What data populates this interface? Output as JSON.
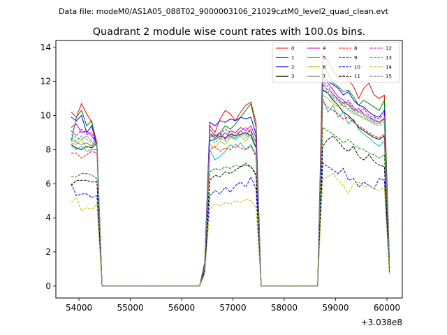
{
  "header": {
    "file_line": "Data file: modeM0/AS1A05_088T02_9000003106_21029cztM0_level2_quad_clean.evt",
    "title": "Quadrant 2 module wise count rates with 100.0s bins."
  },
  "chart_data": {
    "type": "line",
    "title": "Quadrant 2 module wise count rates with 100.0s bins.",
    "xlabel": "",
    "ylabel": "",
    "x_offset_label": "+3.038e8",
    "xlim": [
      53550,
      60300
    ],
    "ylim": [
      -0.7,
      14.4
    ],
    "x_ticks": [
      54000,
      55000,
      56000,
      57000,
      58000,
      59000,
      60000
    ],
    "x_tick_labels": [
      "54000",
      "55000",
      "56000",
      "57000",
      "58000",
      "59000",
      "60000"
    ],
    "y_ticks": [
      0,
      2,
      4,
      6,
      8,
      10,
      12,
      14
    ],
    "y_tick_labels": [
      "0",
      "2",
      "4",
      "6",
      "8",
      "10",
      "12",
      "14"
    ],
    "grid": false,
    "legend_position": "top-right",
    "x": [
      53850,
      53950,
      54050,
      54150,
      54250,
      54350,
      54450,
      54550,
      54650,
      54750,
      54850,
      54950,
      55050,
      55150,
      55250,
      55350,
      55450,
      55550,
      55650,
      55750,
      55850,
      55950,
      56050,
      56150,
      56250,
      56350,
      56450,
      56550,
      56650,
      56750,
      56850,
      56950,
      57050,
      57150,
      57250,
      57350,
      57450,
      57550,
      57650,
      57750,
      57850,
      57950,
      58050,
      58150,
      58250,
      58350,
      58450,
      58550,
      58650,
      58750,
      58850,
      58950,
      59050,
      59150,
      59250,
      59350,
      59450,
      59550,
      59650,
      59750,
      59850,
      59950,
      60050
    ],
    "series": [
      {
        "name": "0",
        "color": "#ff0000",
        "dashed": false,
        "values": [
          10.2,
          9.9,
          10.7,
          10.1,
          9.6,
          8.4,
          0.0,
          0.0,
          0.0,
          0.0,
          0.0,
          0.0,
          0.0,
          0.0,
          0.0,
          0.0,
          0.0,
          0.0,
          0.0,
          0.0,
          0.0,
          0.0,
          0.0,
          0.0,
          0.0,
          0.0,
          1.4,
          9.4,
          9.0,
          9.8,
          10.3,
          10.1,
          9.7,
          10.2,
          10.6,
          10.8,
          9.6,
          0.0,
          0.0,
          0.0,
          0.0,
          0.0,
          0.0,
          0.0,
          0.0,
          0.0,
          0.0,
          0.0,
          0.0,
          13.6,
          13.2,
          12.6,
          12.2,
          12.4,
          12.1,
          11.7,
          11.0,
          11.6,
          11.9,
          11.2,
          11.0,
          11.2,
          1.5
        ]
      },
      {
        "name": "1",
        "color": "#008000",
        "dashed": false,
        "values": [
          8.5,
          9.9,
          10.3,
          9.4,
          9.7,
          8.1,
          0.0,
          0.0,
          0.0,
          0.0,
          0.0,
          0.0,
          0.0,
          0.0,
          0.0,
          0.0,
          0.0,
          0.0,
          0.0,
          0.0,
          0.0,
          0.0,
          0.0,
          0.0,
          0.0,
          0.0,
          1.3,
          8.9,
          8.7,
          9.0,
          9.4,
          9.2,
          9.5,
          9.9,
          10.3,
          10.7,
          9.3,
          0.0,
          0.0,
          0.0,
          0.0,
          0.0,
          0.0,
          0.0,
          0.0,
          0.0,
          0.0,
          0.0,
          0.0,
          12.9,
          12.5,
          11.9,
          11.7,
          11.4,
          11.5,
          11.1,
          10.6,
          10.9,
          10.7,
          10.5,
          10.3,
          10.9,
          1.3
        ]
      },
      {
        "name": "2",
        "color": "#0000ff",
        "dashed": false,
        "values": [
          9.9,
          9.7,
          10.0,
          9.0,
          9.4,
          8.2,
          0.0,
          0.0,
          0.0,
          0.0,
          0.0,
          0.0,
          0.0,
          0.0,
          0.0,
          0.0,
          0.0,
          0.0,
          0.0,
          0.0,
          0.0,
          0.0,
          0.0,
          0.0,
          0.0,
          0.0,
          1.3,
          9.6,
          9.4,
          9.7,
          9.6,
          9.8,
          9.7,
          9.9,
          9.8,
          9.9,
          8.9,
          0.0,
          0.0,
          0.0,
          0.0,
          0.0,
          0.0,
          0.0,
          0.0,
          0.0,
          0.0,
          0.0,
          0.0,
          12.4,
          12.0,
          11.8,
          11.6,
          11.2,
          11.4,
          10.9,
          10.6,
          10.5,
          10.2,
          10.0,
          9.9,
          10.3,
          1.2
        ]
      },
      {
        "name": "3",
        "color": "#000000",
        "dashed": false,
        "values": [
          8.3,
          8.1,
          8.0,
          8.2,
          8.1,
          8.4,
          0.0,
          0.0,
          0.0,
          0.0,
          0.0,
          0.0,
          0.0,
          0.0,
          0.0,
          0.0,
          0.0,
          0.0,
          0.0,
          0.0,
          0.0,
          0.0,
          0.0,
          0.0,
          0.0,
          0.0,
          1.1,
          8.5,
          8.6,
          8.8,
          8.7,
          8.9,
          8.8,
          8.9,
          9.0,
          8.8,
          8.1,
          0.0,
          0.0,
          0.0,
          0.0,
          0.0,
          0.0,
          0.0,
          0.0,
          0.0,
          0.0,
          0.0,
          0.0,
          11.5,
          11.3,
          10.9,
          10.6,
          10.2,
          10.0,
          9.7,
          9.3,
          9.1,
          8.9,
          8.7,
          8.6,
          8.8,
          1.0
        ]
      },
      {
        "name": "4",
        "color": "#bf00bf",
        "dashed": false,
        "values": [
          9.3,
          9.5,
          9.0,
          9.1,
          8.8,
          8.3,
          0.0,
          0.0,
          0.0,
          0.0,
          0.0,
          0.0,
          0.0,
          0.0,
          0.0,
          0.0,
          0.0,
          0.0,
          0.0,
          0.0,
          0.0,
          0.0,
          0.0,
          0.0,
          0.0,
          0.0,
          1.2,
          9.2,
          8.8,
          9.0,
          8.6,
          9.1,
          9.0,
          9.3,
          9.1,
          9.4,
          8.7,
          0.0,
          0.0,
          0.0,
          0.0,
          0.0,
          0.0,
          0.0,
          0.0,
          0.0,
          0.0,
          0.0,
          0.0,
          12.2,
          11.9,
          11.5,
          11.1,
          10.9,
          10.6,
          10.3,
          10.4,
          10.1,
          9.9,
          9.7,
          9.6,
          9.8,
          1.1
        ]
      },
      {
        "name": "5",
        "color": "#00bfbf",
        "dashed": false,
        "values": [
          8.2,
          8.0,
          8.2,
          7.9,
          8.0,
          8.0,
          0.0,
          0.0,
          0.0,
          0.0,
          0.0,
          0.0,
          0.0,
          0.0,
          0.0,
          0.0,
          0.0,
          0.0,
          0.0,
          0.0,
          0.0,
          0.0,
          0.0,
          0.0,
          0.0,
          0.0,
          1.1,
          8.0,
          7.4,
          7.6,
          7.9,
          8.3,
          8.1,
          8.4,
          8.0,
          8.3,
          7.7,
          0.0,
          0.0,
          0.0,
          0.0,
          0.0,
          0.0,
          0.0,
          0.0,
          0.0,
          0.0,
          0.0,
          0.0,
          11.0,
          10.2,
          10.6,
          9.9,
          10.2,
          9.5,
          9.8,
          9.2,
          8.9,
          8.7,
          8.4,
          8.2,
          8.5,
          1.0
        ]
      },
      {
        "name": "6",
        "color": "#bfbf00",
        "dashed": false,
        "values": [
          8.4,
          8.3,
          8.6,
          8.1,
          8.3,
          8.2,
          0.0,
          0.0,
          0.0,
          0.0,
          0.0,
          0.0,
          0.0,
          0.0,
          0.0,
          0.0,
          0.0,
          0.0,
          0.0,
          0.0,
          0.0,
          0.0,
          0.0,
          0.0,
          0.0,
          0.0,
          1.1,
          8.3,
          8.1,
          8.5,
          8.3,
          8.7,
          8.6,
          8.8,
          8.5,
          8.9,
          8.2,
          0.0,
          0.0,
          0.0,
          0.0,
          0.0,
          0.0,
          0.0,
          0.0,
          0.0,
          0.0,
          0.0,
          0.0,
          11.2,
          11.0,
          10.7,
          10.5,
          10.8,
          10.3,
          10.1,
          10.0,
          9.8,
          9.7,
          9.5,
          9.6,
          9.7,
          1.0
        ]
      },
      {
        "name": "7",
        "color": "#808080",
        "dashed": false,
        "values": [
          8.6,
          8.4,
          8.3,
          8.4,
          8.2,
          8.5,
          0.0,
          0.0,
          0.0,
          0.0,
          0.0,
          0.0,
          0.0,
          0.0,
          0.0,
          0.0,
          0.0,
          0.0,
          0.0,
          0.0,
          0.0,
          0.0,
          0.0,
          0.0,
          0.0,
          0.0,
          1.2,
          8.7,
          8.9,
          8.6,
          9.0,
          8.8,
          8.7,
          9.1,
          8.9,
          9.2,
          8.4,
          0.0,
          0.0,
          0.0,
          0.0,
          0.0,
          0.0,
          0.0,
          0.0,
          0.0,
          0.0,
          0.0,
          0.0,
          11.8,
          11.5,
          11.3,
          10.9,
          10.7,
          10.8,
          10.4,
          10.2,
          10.1,
          9.9,
          9.8,
          9.6,
          9.9,
          1.1
        ]
      },
      {
        "name": "8",
        "color": "#ff0000",
        "dashed": true,
        "values": [
          7.8,
          7.8,
          7.5,
          7.7,
          7.9,
          7.8,
          0.0,
          0.0,
          0.0,
          0.0,
          0.0,
          0.0,
          0.0,
          0.0,
          0.0,
          0.0,
          0.0,
          0.0,
          0.0,
          0.0,
          0.0,
          0.0,
          0.0,
          0.0,
          0.0,
          0.0,
          1.0,
          8.0,
          8.2,
          7.9,
          8.1,
          8.0,
          8.3,
          8.1,
          8.0,
          8.2,
          7.6,
          0.0,
          0.0,
          0.0,
          0.0,
          0.0,
          0.0,
          0.0,
          0.0,
          0.0,
          0.0,
          0.0,
          0.0,
          10.8,
          10.5,
          10.3,
          10.1,
          9.8,
          9.9,
          9.6,
          9.4,
          9.2,
          9.0,
          8.8,
          8.7,
          8.9,
          0.9
        ]
      },
      {
        "name": "9",
        "color": "#008000",
        "dashed": true,
        "values": [
          6.4,
          6.4,
          6.6,
          6.6,
          6.5,
          6.3,
          0.0,
          0.0,
          0.0,
          0.0,
          0.0,
          0.0,
          0.0,
          0.0,
          0.0,
          0.0,
          0.0,
          0.0,
          0.0,
          0.0,
          0.0,
          0.0,
          0.0,
          0.0,
          0.0,
          0.0,
          0.9,
          6.7,
          6.9,
          6.8,
          7.0,
          6.9,
          7.1,
          7.0,
          7.2,
          7.0,
          6.6,
          0.0,
          0.0,
          0.0,
          0.0,
          0.0,
          0.0,
          0.0,
          0.0,
          0.0,
          0.0,
          0.0,
          0.0,
          9.3,
          9.1,
          8.9,
          8.7,
          8.4,
          8.6,
          8.3,
          8.1,
          8.0,
          7.8,
          7.7,
          7.5,
          7.7,
          0.8
        ]
      },
      {
        "name": "10",
        "color": "#0000ff",
        "dashed": true,
        "values": [
          6.0,
          5.3,
          5.4,
          5.4,
          5.2,
          5.3,
          0.0,
          0.0,
          0.0,
          0.0,
          0.0,
          0.0,
          0.0,
          0.0,
          0.0,
          0.0,
          0.0,
          0.0,
          0.0,
          0.0,
          0.0,
          0.0,
          0.0,
          0.0,
          0.0,
          0.0,
          0.8,
          5.3,
          5.6,
          5.4,
          5.8,
          5.5,
          5.9,
          6.1,
          5.8,
          6.4,
          5.7,
          0.0,
          0.0,
          0.0,
          0.0,
          0.0,
          0.0,
          0.0,
          0.0,
          0.0,
          0.0,
          0.0,
          0.0,
          7.2,
          7.0,
          6.8,
          6.6,
          6.9,
          6.2,
          6.3,
          5.8,
          6.1,
          5.9,
          5.7,
          6.3,
          6.2,
          0.8
        ]
      },
      {
        "name": "11",
        "color": "#000000",
        "dashed": true,
        "values": [
          5.9,
          6.2,
          6.2,
          6.2,
          6.1,
          6.1,
          0.0,
          0.0,
          0.0,
          0.0,
          0.0,
          0.0,
          0.0,
          0.0,
          0.0,
          0.0,
          0.0,
          0.0,
          0.0,
          0.0,
          0.0,
          0.0,
          0.0,
          0.0,
          0.0,
          0.0,
          0.9,
          6.2,
          6.5,
          6.4,
          6.7,
          6.6,
          6.8,
          7.0,
          7.1,
          7.0,
          6.5,
          0.0,
          0.0,
          0.0,
          0.0,
          0.0,
          0.0,
          0.0,
          0.0,
          0.0,
          0.0,
          0.0,
          0.0,
          8.2,
          8.6,
          8.8,
          8.5,
          8.1,
          7.9,
          8.2,
          7.6,
          7.4,
          7.7,
          7.3,
          7.1,
          7.0,
          0.8
        ]
      },
      {
        "name": "12",
        "color": "#bf00bf",
        "dashed": true,
        "values": [
          9.1,
          8.8,
          9.2,
          8.9,
          9.0,
          8.3,
          0.0,
          0.0,
          0.0,
          0.0,
          0.0,
          0.0,
          0.0,
          0.0,
          0.0,
          0.0,
          0.0,
          0.0,
          0.0,
          0.0,
          0.0,
          0.0,
          0.0,
          0.0,
          0.0,
          0.0,
          1.2,
          9.0,
          8.7,
          8.9,
          9.2,
          9.0,
          8.8,
          9.1,
          9.3,
          9.0,
          8.5,
          0.0,
          0.0,
          0.0,
          0.0,
          0.0,
          0.0,
          0.0,
          0.0,
          0.0,
          0.0,
          0.0,
          0.0,
          12.0,
          11.7,
          11.2,
          11.0,
          10.7,
          10.9,
          10.5,
          10.2,
          10.4,
          10.0,
          9.9,
          9.8,
          10.1,
          1.1
        ]
      },
      {
        "name": "13",
        "color": "#00bfbf",
        "dashed": true,
        "values": [
          8.7,
          8.5,
          8.8,
          8.6,
          8.4,
          8.3,
          0.0,
          0.0,
          0.0,
          0.0,
          0.0,
          0.0,
          0.0,
          0.0,
          0.0,
          0.0,
          0.0,
          0.0,
          0.0,
          0.0,
          0.0,
          0.0,
          0.0,
          0.0,
          0.0,
          0.0,
          1.1,
          8.6,
          8.4,
          8.7,
          8.5,
          8.8,
          8.6,
          8.9,
          8.7,
          8.9,
          8.2,
          0.0,
          0.0,
          0.0,
          0.0,
          0.0,
          0.0,
          0.0,
          0.0,
          0.0,
          0.0,
          0.0,
          0.0,
          11.6,
          11.3,
          11.0,
          10.8,
          10.6,
          10.4,
          10.2,
          10.0,
          9.9,
          9.7,
          9.5,
          9.4,
          9.6,
          1.1
        ]
      },
      {
        "name": "14",
        "color": "#bfbf00",
        "dashed": true,
        "values": [
          4.9,
          5.2,
          4.4,
          4.6,
          4.5,
          4.8,
          0.0,
          0.0,
          0.0,
          0.0,
          0.0,
          0.0,
          0.0,
          0.0,
          0.0,
          0.0,
          0.0,
          0.0,
          0.0,
          0.0,
          0.0,
          0.0,
          0.0,
          0.0,
          0.0,
          0.0,
          0.7,
          4.5,
          4.8,
          4.7,
          4.9,
          4.8,
          5.0,
          4.9,
          5.1,
          5.0,
          4.6,
          0.0,
          0.0,
          0.0,
          0.0,
          0.0,
          0.0,
          0.0,
          0.0,
          0.0,
          0.0,
          0.0,
          0.0,
          6.3,
          6.4,
          6.6,
          6.2,
          5.9,
          5.4,
          6.0,
          6.1,
          5.8,
          5.9,
          5.7,
          5.6,
          5.8,
          0.7
        ]
      },
      {
        "name": "15",
        "color": "#808080",
        "dashed": true,
        "values": [
          8.9,
          8.7,
          8.6,
          8.8,
          8.5,
          8.4,
          0.0,
          0.0,
          0.0,
          0.0,
          0.0,
          0.0,
          0.0,
          0.0,
          0.0,
          0.0,
          0.0,
          0.0,
          0.0,
          0.0,
          0.0,
          0.0,
          0.0,
          0.0,
          0.0,
          0.0,
          1.2,
          8.9,
          8.6,
          8.8,
          9.0,
          8.7,
          8.9,
          9.1,
          8.8,
          9.1,
          8.4,
          0.0,
          0.0,
          0.0,
          0.0,
          0.0,
          0.0,
          0.0,
          0.0,
          0.0,
          0.0,
          0.0,
          0.0,
          11.9,
          11.4,
          11.1,
          10.9,
          10.5,
          10.7,
          10.3,
          10.1,
          10.0,
          9.8,
          9.6,
          9.5,
          9.9,
          1.1
        ]
      }
    ]
  }
}
